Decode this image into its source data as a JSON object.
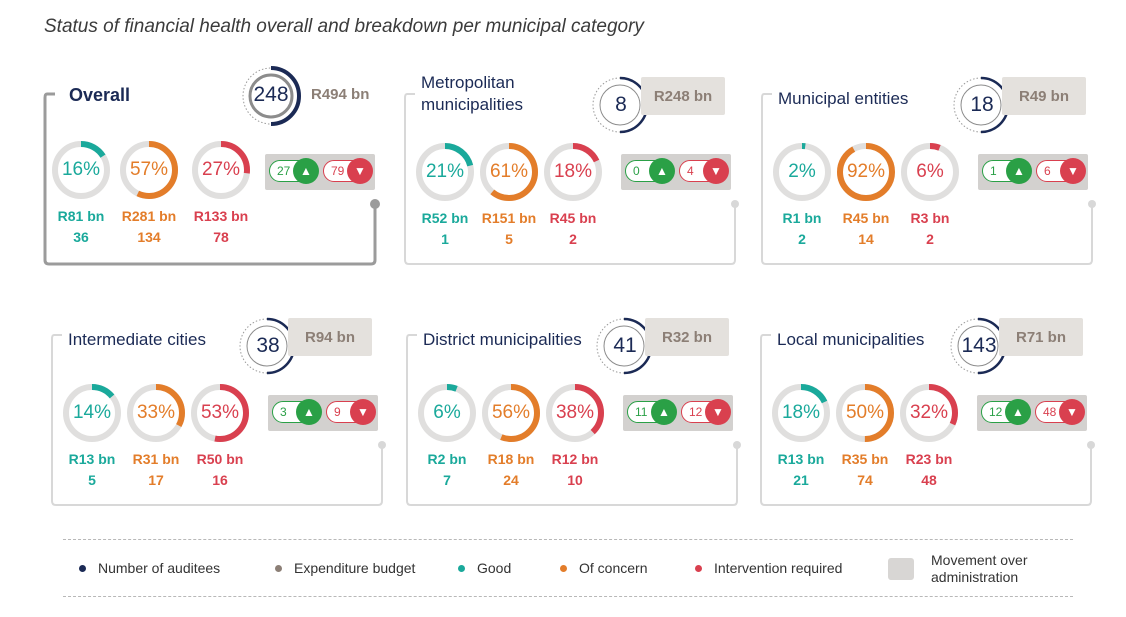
{
  "title": "Status of financial health overall and breakdown per municipal category",
  "colors": {
    "navy": "#1b2a55",
    "budget": "#8c7f76",
    "good": "#1aa99b",
    "concern": "#e37d2a",
    "intervention": "#d9404f",
    "track": "#e0dfde",
    "movement_bg": "#d3d1cf",
    "up_arrow": "#2aa046",
    "down_arrow": "#d9404f"
  },
  "chart_data": [
    {
      "type": "donut-group",
      "category": "Overall",
      "auditees": 248,
      "budget": "R494 bn",
      "good": {
        "pct": 16,
        "budget": "R81 bn",
        "count": 36
      },
      "concern": {
        "pct": 57,
        "budget": "R281 bn",
        "count": 134
      },
      "intervention": {
        "pct": 27,
        "budget": "R133 bn",
        "count": 78
      },
      "movement": {
        "improved": 27,
        "regressed": 79
      }
    },
    {
      "type": "donut-group",
      "category": "Metropolitan municipalities",
      "auditees": 8,
      "budget": "R248 bn",
      "good": {
        "pct": 21,
        "budget": "R52 bn",
        "count": 1
      },
      "concern": {
        "pct": 61,
        "budget": "R151 bn",
        "count": 5
      },
      "intervention": {
        "pct": 18,
        "budget": "R45 bn",
        "count": 2
      },
      "movement": {
        "improved": 0,
        "regressed": 4
      }
    },
    {
      "type": "donut-group",
      "category": "Municipal entities",
      "auditees": 18,
      "budget": "R49 bn",
      "good": {
        "pct": 2,
        "budget": "R1 bn",
        "count": 2
      },
      "concern": {
        "pct": 92,
        "budget": "R45 bn",
        "count": 14
      },
      "intervention": {
        "pct": 6,
        "budget": "R3 bn",
        "count": 2
      },
      "movement": {
        "improved": 1,
        "regressed": 6
      }
    },
    {
      "type": "donut-group",
      "category": "Intermediate cities",
      "auditees": 38,
      "budget": "R94 bn",
      "good": {
        "pct": 14,
        "budget": "R13 bn",
        "count": 5
      },
      "concern": {
        "pct": 33,
        "budget": "R31 bn",
        "count": 17
      },
      "intervention": {
        "pct": 53,
        "budget": "R50 bn",
        "count": 16
      },
      "movement": {
        "improved": 3,
        "regressed": 9
      }
    },
    {
      "type": "donut-group",
      "category": "District municipalities",
      "auditees": 41,
      "budget": "R32 bn",
      "good": {
        "pct": 6,
        "budget": "R2 bn",
        "count": 7
      },
      "concern": {
        "pct": 56,
        "budget": "R18 bn",
        "count": 24
      },
      "intervention": {
        "pct": 38,
        "budget": "R12 bn",
        "count": 10
      },
      "movement": {
        "improved": 11,
        "regressed": 12
      }
    },
    {
      "type": "donut-group",
      "category": "Local municipalities",
      "auditees": 143,
      "budget": "R71 bn",
      "good": {
        "pct": 18,
        "budget": "R13 bn",
        "count": 21
      },
      "concern": {
        "pct": 50,
        "budget": "R35 bn",
        "count": 74
      },
      "intervention": {
        "pct": 32,
        "budget": "R23 bn",
        "count": 48
      },
      "movement": {
        "improved": 12,
        "regressed": 48
      }
    }
  ],
  "legend": [
    {
      "label": "Number of auditees",
      "color": "#1b2a55"
    },
    {
      "label": "Expenditure budget",
      "color": "#8c7f76"
    },
    {
      "label": "Good",
      "color": "#1aa99b"
    },
    {
      "label": "Of concern",
      "color": "#e37d2a"
    },
    {
      "label": "Intervention required",
      "color": "#d9404f"
    },
    {
      "label": "Movement over administration",
      "color": "#d8d6d4"
    }
  ]
}
